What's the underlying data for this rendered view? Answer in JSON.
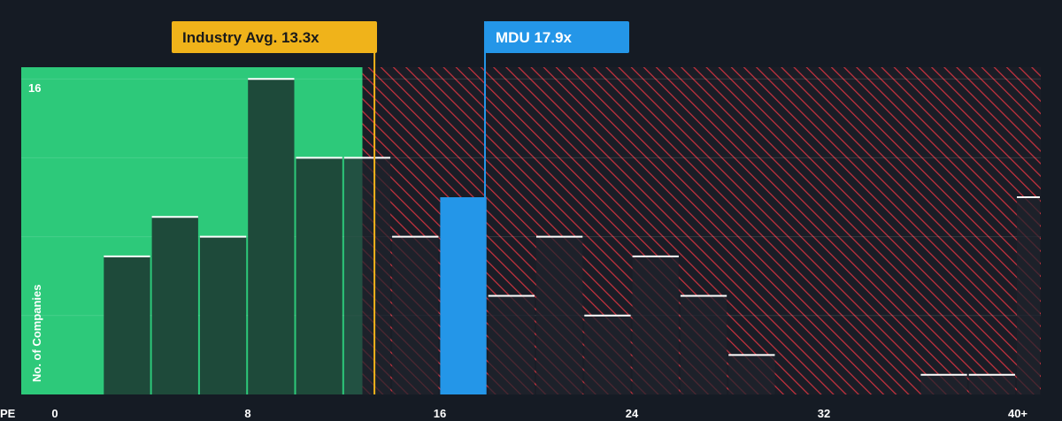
{
  "chart_data": {
    "type": "bar",
    "x_axis_label": "PE",
    "y_axis_label": "No. of Companies",
    "x_ticks": [
      "0",
      "8",
      "16",
      "24",
      "32",
      "40+"
    ],
    "x_tick_values": [
      0,
      8,
      16,
      24,
      32,
      40
    ],
    "y_tick_labels": [
      "16"
    ],
    "ylim": [
      0,
      16.5
    ],
    "xlim": [
      0,
      41
    ],
    "bin_width": 2,
    "bins": [
      {
        "x0": 2,
        "x1": 4,
        "value": 7
      },
      {
        "x0": 4,
        "x1": 6,
        "value": 9
      },
      {
        "x0": 6,
        "x1": 8,
        "value": 8
      },
      {
        "x0": 8,
        "x1": 10,
        "value": 16
      },
      {
        "x0": 10,
        "x1": 12,
        "value": 12
      },
      {
        "x0": 12,
        "x1": 14,
        "value": 12
      },
      {
        "x0": 14,
        "x1": 16,
        "value": 8
      },
      {
        "x0": 16,
        "x1": 18,
        "value": 10
      },
      {
        "x0": 18,
        "x1": 20,
        "value": 5
      },
      {
        "x0": 20,
        "x1": 22,
        "value": 8
      },
      {
        "x0": 22,
        "x1": 24,
        "value": 4
      },
      {
        "x0": 24,
        "x1": 26,
        "value": 7
      },
      {
        "x0": 26,
        "x1": 28,
        "value": 5
      },
      {
        "x0": 28,
        "x1": 30,
        "value": 2
      },
      {
        "x0": 36,
        "x1": 38,
        "value": 1
      },
      {
        "x0": 38,
        "x1": 40,
        "value": 1
      },
      {
        "x0": 40,
        "x1": 42,
        "value": 10
      }
    ],
    "industry_avg": {
      "value": 13.3,
      "label": "Industry Avg. 13.3x"
    },
    "company": {
      "value": 17.9,
      "label": "MDU 17.9x"
    },
    "colors": {
      "background": "#151b24",
      "undervalued_zone": "#2dc97a",
      "overvalued_hatch": "#c7323e",
      "bar_dark": "#1e4a3a",
      "company_bar": "#2496e8",
      "industry_marker": "#f0b31a",
      "company_marker": "#2496e8",
      "bar_cap": "#ffffff"
    },
    "grid": true
  }
}
